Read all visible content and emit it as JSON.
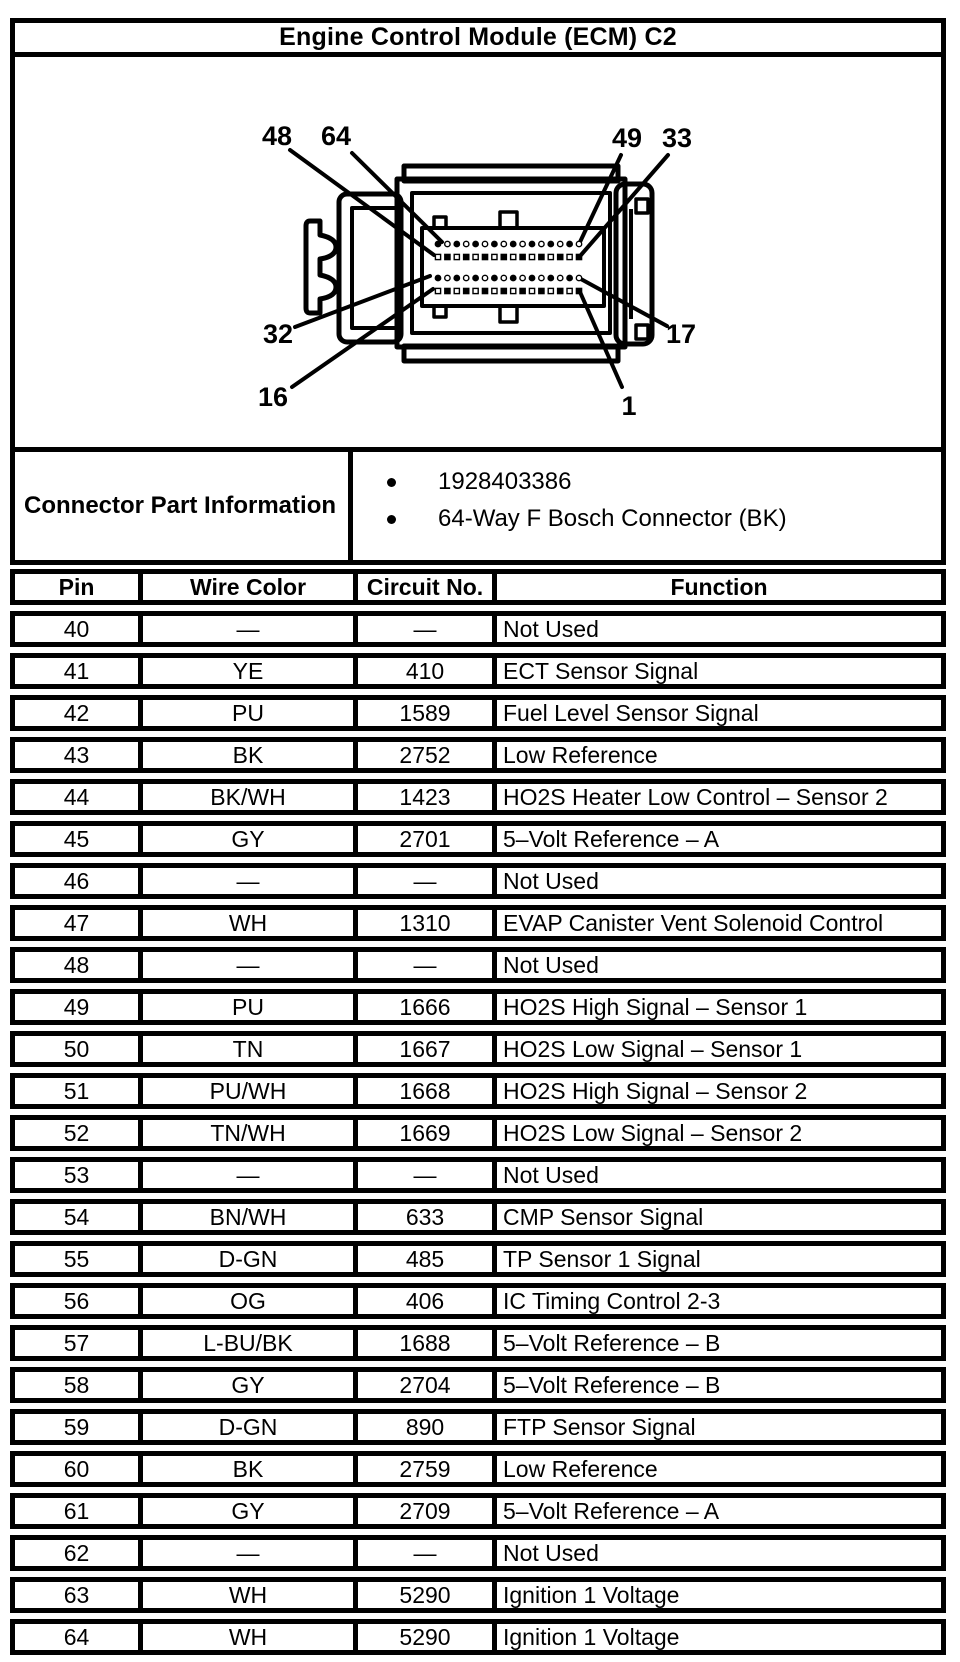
{
  "title": "Engine Control Module (ECM) C2",
  "diagram": {
    "pin_labels": [
      "48",
      "64",
      "49",
      "33",
      "32",
      "17",
      "16",
      "1"
    ],
    "pin_rows": 4,
    "pins_per_row": 16
  },
  "connector_part_information": {
    "label": "Connector Part Information",
    "bullets": [
      "1928403386",
      "64-Way F Bosch Connector (BK)"
    ]
  },
  "table": {
    "headers": [
      "Pin",
      "Wire Color",
      "Circuit No.",
      "Function"
    ],
    "rows": [
      {
        "pin": "40",
        "wire_color": "—",
        "circuit_no": "—",
        "function": "Not Used"
      },
      {
        "pin": "41",
        "wire_color": "YE",
        "circuit_no": "410",
        "function": "ECT Sensor Signal"
      },
      {
        "pin": "42",
        "wire_color": "PU",
        "circuit_no": "1589",
        "function": "Fuel Level Sensor Signal"
      },
      {
        "pin": "43",
        "wire_color": "BK",
        "circuit_no": "2752",
        "function": "Low Reference"
      },
      {
        "pin": "44",
        "wire_color": "BK/WH",
        "circuit_no": "1423",
        "function": "HO2S Heater Low Control – Sensor 2"
      },
      {
        "pin": "45",
        "wire_color": "GY",
        "circuit_no": "2701",
        "function": "5–Volt Reference – A"
      },
      {
        "pin": "46",
        "wire_color": "—",
        "circuit_no": "—",
        "function": "Not Used"
      },
      {
        "pin": "47",
        "wire_color": "WH",
        "circuit_no": "1310",
        "function": "EVAP Canister Vent Solenoid Control"
      },
      {
        "pin": "48",
        "wire_color": "—",
        "circuit_no": "—",
        "function": "Not Used"
      },
      {
        "pin": "49",
        "wire_color": "PU",
        "circuit_no": "1666",
        "function": "HO2S High Signal – Sensor 1"
      },
      {
        "pin": "50",
        "wire_color": "TN",
        "circuit_no": "1667",
        "function": "HO2S Low Signal – Sensor 1"
      },
      {
        "pin": "51",
        "wire_color": "PU/WH",
        "circuit_no": "1668",
        "function": "HO2S High Signal – Sensor 2"
      },
      {
        "pin": "52",
        "wire_color": "TN/WH",
        "circuit_no": "1669",
        "function": "HO2S Low Signal – Sensor 2"
      },
      {
        "pin": "53",
        "wire_color": "—",
        "circuit_no": "—",
        "function": "Not Used"
      },
      {
        "pin": "54",
        "wire_color": "BN/WH",
        "circuit_no": "633",
        "function": "CMP Sensor Signal"
      },
      {
        "pin": "55",
        "wire_color": "D-GN",
        "circuit_no": "485",
        "function": "TP Sensor 1 Signal"
      },
      {
        "pin": "56",
        "wire_color": "OG",
        "circuit_no": "406",
        "function": "IC Timing Control 2-3"
      },
      {
        "pin": "57",
        "wire_color": "L-BU/BK",
        "circuit_no": "1688",
        "function": "5–Volt Reference – B"
      },
      {
        "pin": "58",
        "wire_color": "GY",
        "circuit_no": "2704",
        "function": "5–Volt Reference – B"
      },
      {
        "pin": "59",
        "wire_color": "D-GN",
        "circuit_no": "890",
        "function": "FTP Sensor Signal"
      },
      {
        "pin": "60",
        "wire_color": "BK",
        "circuit_no": "2759",
        "function": "Low Reference"
      },
      {
        "pin": "61",
        "wire_color": "GY",
        "circuit_no": "2709",
        "function": "5–Volt Reference – A"
      },
      {
        "pin": "62",
        "wire_color": "—",
        "circuit_no": "—",
        "function": "Not Used"
      },
      {
        "pin": "63",
        "wire_color": "WH",
        "circuit_no": "5290",
        "function": "Ignition 1 Voltage"
      },
      {
        "pin": "64",
        "wire_color": "WH",
        "circuit_no": "5290",
        "function": "Ignition 1 Voltage"
      }
    ]
  }
}
